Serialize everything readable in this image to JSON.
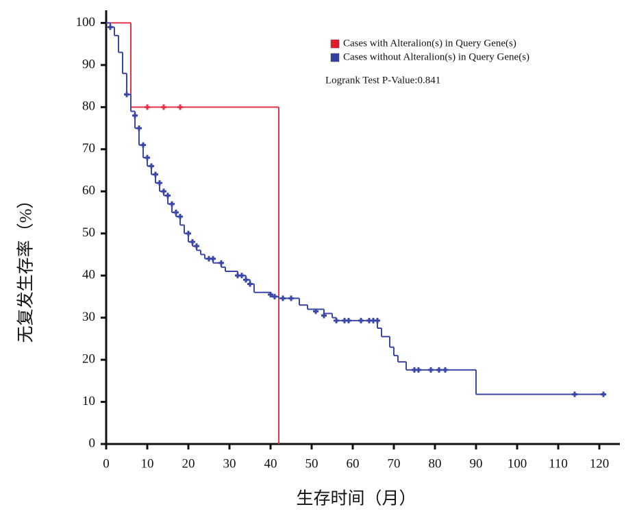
{
  "chart_data": {
    "type": "kaplan-meier",
    "x_label": "生存时间（月）",
    "y_label": "无复发生存率（%）",
    "annotation": "Logrank Test P-Value:0.841",
    "xlim": [
      0,
      125
    ],
    "ylim": [
      0,
      103
    ],
    "xticks": [
      0,
      10,
      20,
      30,
      40,
      50,
      60,
      70,
      80,
      90,
      100,
      110,
      120
    ],
    "yticks": [
      0,
      10,
      20,
      30,
      40,
      50,
      60,
      70,
      80,
      90,
      100
    ],
    "legend": "upper right",
    "series": [
      {
        "name": "Cases with Alteralion(s) in Query Gene(s)",
        "color": "#e8314a",
        "legend_color": "#e01b2a",
        "x": [
          0,
          6,
          42
        ],
        "values": [
          100,
          80,
          0
        ],
        "censored": {
          "x": [
            10,
            14,
            18
          ],
          "values": [
            80,
            80,
            80
          ]
        }
      },
      {
        "name": "Cases without Alteralion(s) in Query Gene(s)",
        "color": "#3a46a8",
        "legend_color": "#2e3f9e",
        "x": [
          0,
          1,
          2,
          3,
          4,
          5,
          6,
          7,
          8,
          9,
          10,
          11,
          12,
          13,
          14,
          15,
          16,
          17,
          18,
          19,
          20,
          21,
          22,
          23,
          24,
          26,
          28,
          29,
          32,
          34,
          35,
          36,
          40,
          42,
          47,
          49,
          53,
          55,
          56,
          66,
          67,
          69,
          70,
          71,
          73,
          90,
          121
        ],
        "values": [
          100,
          99,
          97,
          93,
          88,
          83,
          79,
          75,
          71,
          68,
          66,
          64,
          62,
          60,
          59,
          57,
          55,
          54,
          52,
          50,
          48,
          47,
          46,
          45,
          44,
          43,
          42,
          41,
          40,
          39,
          38,
          36,
          35,
          34.6,
          33,
          32,
          31,
          30,
          29.3,
          27.5,
          25.5,
          23,
          21,
          19.5,
          17.6,
          11.8,
          11.8
        ],
        "censored": {
          "x": [
            1,
            5,
            7,
            8,
            9,
            10,
            11,
            12,
            13,
            14,
            15,
            16,
            17,
            18,
            20,
            21,
            22,
            25,
            26,
            28,
            32,
            33,
            34,
            35,
            40,
            41,
            43,
            45,
            51,
            53,
            56,
            58,
            59,
            62,
            64,
            65,
            66,
            75,
            76,
            79,
            81,
            82.5,
            114,
            121
          ],
          "values": [
            99,
            83,
            78,
            75,
            71,
            68,
            66,
            64,
            62,
            60,
            59,
            57,
            55,
            54,
            50,
            48,
            47,
            44,
            44,
            43,
            40,
            40,
            39,
            38,
            35.5,
            35,
            34.6,
            34.6,
            31.5,
            30.5,
            29.3,
            29.3,
            29.3,
            29.3,
            29.3,
            29.3,
            29.3,
            17.6,
            17.6,
            17.6,
            17.6,
            17.6,
            11.8,
            11.8
          ]
        }
      }
    ]
  }
}
